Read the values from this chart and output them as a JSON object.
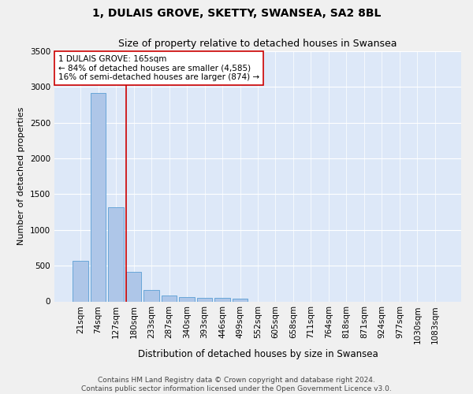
{
  "title": "1, DULAIS GROVE, SKETTY, SWANSEA, SA2 8BL",
  "subtitle": "Size of property relative to detached houses in Swansea",
  "xlabel": "Distribution of detached houses by size in Swansea",
  "ylabel": "Number of detached properties",
  "footer_line1": "Contains HM Land Registry data © Crown copyright and database right 2024.",
  "footer_line2": "Contains public sector information licensed under the Open Government Licence v3.0.",
  "categories": [
    "21sqm",
    "74sqm",
    "127sqm",
    "180sqm",
    "233sqm",
    "287sqm",
    "340sqm",
    "393sqm",
    "446sqm",
    "499sqm",
    "552sqm",
    "605sqm",
    "658sqm",
    "711sqm",
    "764sqm",
    "818sqm",
    "871sqm",
    "924sqm",
    "977sqm",
    "1030sqm",
    "1083sqm"
  ],
  "values": [
    570,
    2920,
    1320,
    410,
    155,
    80,
    60,
    55,
    45,
    35,
    0,
    0,
    0,
    0,
    0,
    0,
    0,
    0,
    0,
    0,
    0
  ],
  "bar_color": "#aec6e8",
  "bar_edge_color": "#5a9fd4",
  "background_color": "#dde8f8",
  "grid_color": "#ffffff",
  "fig_background_color": "#f0f0f0",
  "annotation_line1": "1 DULAIS GROVE: 165sqm",
  "annotation_line2": "← 84% of detached houses are smaller (4,585)",
  "annotation_line3": "16% of semi-detached houses are larger (874) →",
  "vline_x_index": 2.57,
  "vline_color": "#cc0000",
  "annotation_box_color": "#ffffff",
  "annotation_box_edge_color": "#cc0000",
  "ylim": [
    0,
    3500
  ],
  "yticks": [
    0,
    500,
    1000,
    1500,
    2000,
    2500,
    3000,
    3500
  ],
  "title_fontsize": 10,
  "subtitle_fontsize": 9,
  "xlabel_fontsize": 8.5,
  "ylabel_fontsize": 8,
  "tick_fontsize": 7.5,
  "annotation_fontsize": 7.5,
  "footer_fontsize": 6.5
}
